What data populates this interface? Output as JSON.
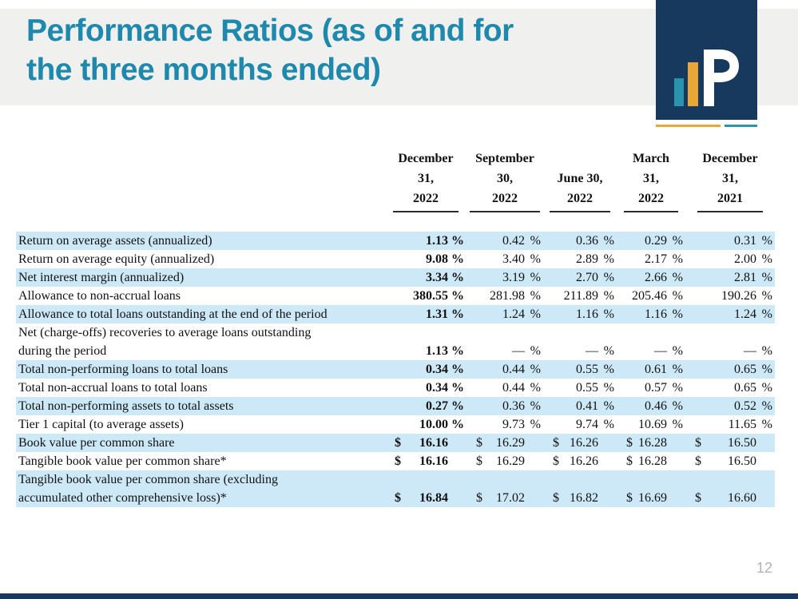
{
  "slide": {
    "title_lines": [
      "Performance Ratios (as of and for",
      "the three months ended)"
    ],
    "page_number": "12"
  },
  "logo": {
    "letter": "P"
  },
  "colors": {
    "title_teal": "#1e89ad",
    "header_band_gray": "#f0f0ee",
    "logo_navy": "#17395e",
    "accent_gold": "#eaa738",
    "accent_teal": "#2a93ae",
    "row_highlight_blue": "#cde9f8",
    "page_number_gray": "#b3b3b3"
  },
  "table": {
    "columns": [
      {
        "lines": [
          "December",
          "31,",
          "2022"
        ]
      },
      {
        "lines": [
          "September",
          "30,",
          "2022"
        ]
      },
      {
        "lines": [
          "",
          "June 30,",
          "2022"
        ]
      },
      {
        "lines": [
          "March",
          "31,",
          "2022"
        ]
      },
      {
        "lines": [
          "December",
          "31,",
          "2021"
        ]
      }
    ],
    "rows": [
      {
        "label_lines": [
          "Return on average assets (annualized)"
        ],
        "prefix": "",
        "suffix": "%",
        "values": [
          "1.13",
          "0.42",
          "0.36",
          "0.29",
          "0.31"
        ],
        "highlight": true
      },
      {
        "label_lines": [
          "Return on average equity (annualized)"
        ],
        "prefix": "",
        "suffix": "%",
        "values": [
          "9.08",
          "3.40",
          "2.89",
          "2.17",
          "2.00"
        ],
        "highlight": false
      },
      {
        "label_lines": [
          "Net interest margin (annualized)"
        ],
        "prefix": "",
        "suffix": "%",
        "values": [
          "3.34",
          "3.19",
          "2.70",
          "2.66",
          "2.81"
        ],
        "highlight": true
      },
      {
        "label_lines": [
          "Allowance to non-accrual loans"
        ],
        "prefix": "",
        "suffix": "%",
        "values": [
          "380.55",
          "281.98",
          "211.89",
          "205.46",
          "190.26"
        ],
        "highlight": false
      },
      {
        "label_lines": [
          "Allowance to total loans outstanding at the end of the period"
        ],
        "prefix": "",
        "suffix": "%",
        "values": [
          "1.31",
          "1.24",
          "1.16",
          "1.16",
          "1.24"
        ],
        "highlight": true
      },
      {
        "label_lines": [
          "Net (charge-offs) recoveries to average loans outstanding",
          "during the period"
        ],
        "prefix": "",
        "suffix": "%",
        "values": [
          "1.13",
          "—",
          "—",
          "—",
          "—"
        ],
        "highlight": false
      },
      {
        "label_lines": [
          "Total non-performing loans to total loans"
        ],
        "prefix": "",
        "suffix": "%",
        "values": [
          "0.34",
          "0.44",
          "0.55",
          "0.61",
          "0.65"
        ],
        "highlight": true
      },
      {
        "label_lines": [
          "Total non-accrual loans to total loans"
        ],
        "prefix": "",
        "suffix": "%",
        "values": [
          "0.34",
          "0.44",
          "0.55",
          "0.57",
          "0.65"
        ],
        "highlight": false
      },
      {
        "label_lines": [
          "Total non-performing assets to total assets"
        ],
        "prefix": "",
        "suffix": "%",
        "values": [
          "0.27",
          "0.36",
          "0.41",
          "0.46",
          "0.52"
        ],
        "highlight": true
      },
      {
        "label_lines": [
          "Tier 1 capital (to average assets)"
        ],
        "prefix": "",
        "suffix": "%",
        "values": [
          "10.00",
          "9.73",
          "9.74",
          "10.69",
          "11.65"
        ],
        "highlight": false
      },
      {
        "label_lines": [
          "Book value per common share"
        ],
        "prefix": "$",
        "suffix": "",
        "values": [
          "16.16",
          "16.29",
          "16.26",
          "16.28",
          "16.50"
        ],
        "highlight": true
      },
      {
        "label_lines": [
          "Tangible book value per common share*"
        ],
        "prefix": "$",
        "suffix": "",
        "values": [
          "16.16",
          "16.29",
          "16.26",
          "16.28",
          "16.50"
        ],
        "highlight": false
      },
      {
        "label_lines": [
          "Tangible book value per common share (excluding",
          "accumulated other comprehensive loss)*"
        ],
        "prefix": "$",
        "suffix": "",
        "values": [
          "16.84",
          "17.02",
          "16.82",
          "16.69",
          "16.60"
        ],
        "highlight": true
      }
    ]
  }
}
